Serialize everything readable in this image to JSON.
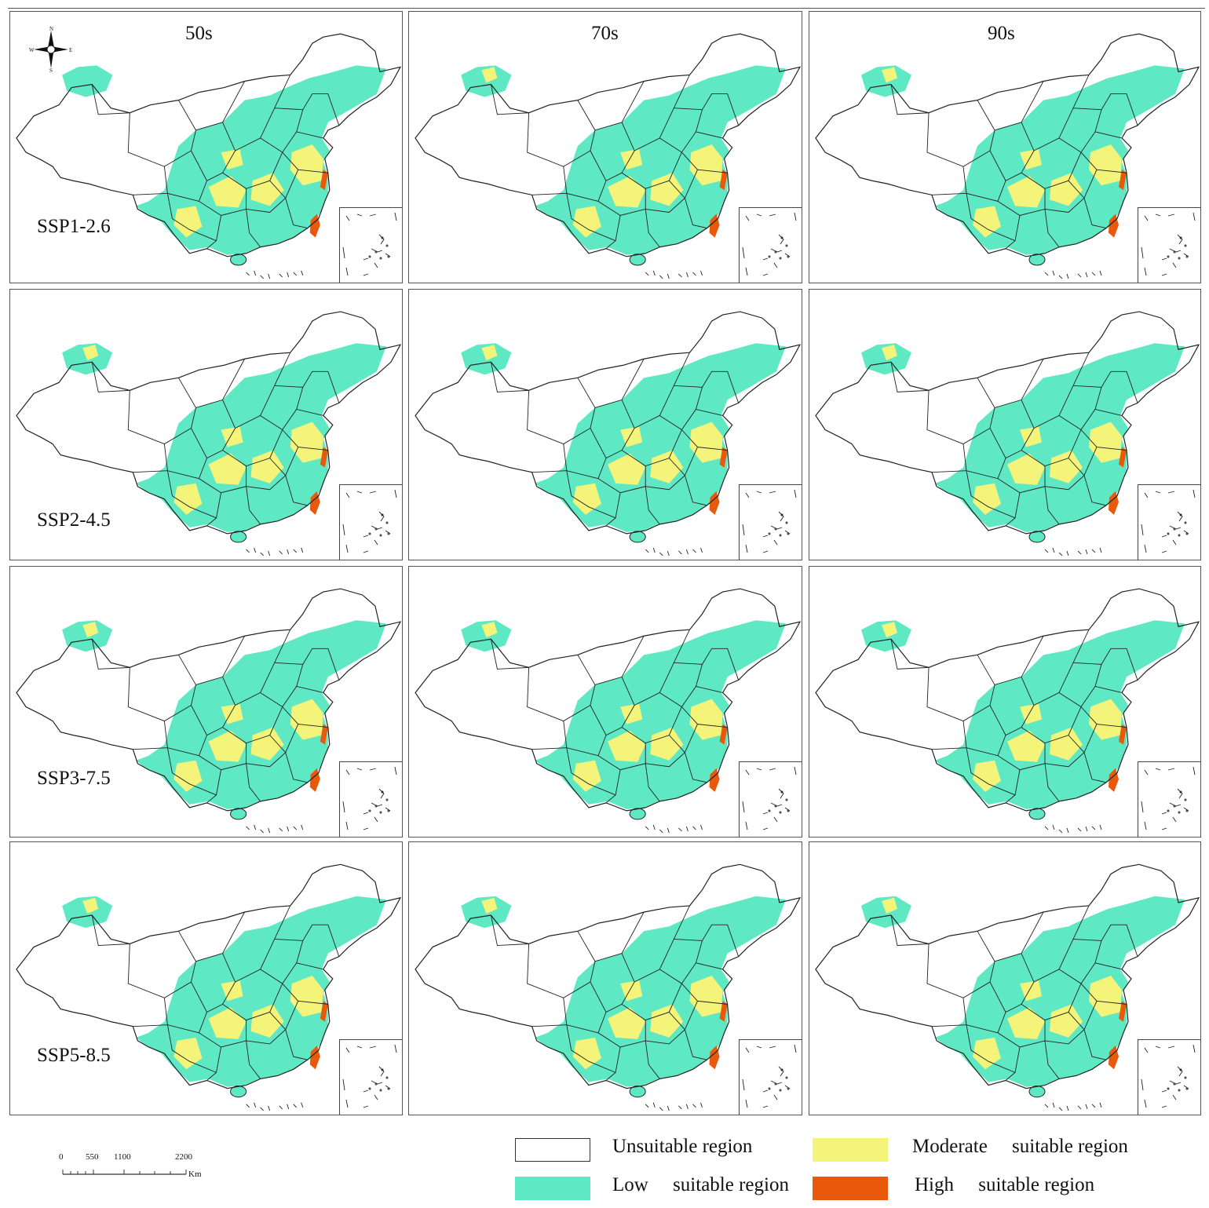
{
  "columns": [
    "50s",
    "70s",
    "90s"
  ],
  "rows": [
    "SSP1-2.6",
    "SSP2-4.5",
    "SSP3-7.5",
    "SSP5-8.5"
  ],
  "compass": {
    "n": "N",
    "s": "S",
    "e": "E",
    "w": "W"
  },
  "legend": [
    {
      "key": "unsuitable",
      "label": "Unsuitable region",
      "color": "#ffffff"
    },
    {
      "key": "low",
      "label": "Low     suitable region",
      "color": "#5fe8c4"
    },
    {
      "key": "moderate",
      "label": "Moderate     suitable region",
      "color": "#f4f47a"
    },
    {
      "key": "high",
      "label": "High     suitable region",
      "color": "#e8590c"
    }
  ],
  "scale": {
    "ticks": [
      "0",
      "550",
      "1100",
      "2200"
    ],
    "unit": "Km"
  },
  "colors": {
    "outline": "#222222",
    "low": "#5fe8c4",
    "moderate": "#f4f47a",
    "high": "#e8590c",
    "frame": "#555555"
  }
}
